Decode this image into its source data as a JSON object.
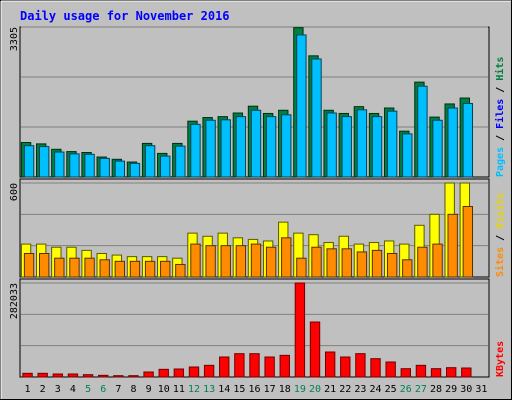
{
  "chart_data": {
    "type": "bar",
    "title": "Daily usage for November 2016",
    "categories": [
      "1",
      "2",
      "3",
      "4",
      "5",
      "6",
      "7",
      "8",
      "9",
      "10",
      "11",
      "12",
      "13",
      "14",
      "15",
      "16",
      "17",
      "18",
      "19",
      "20",
      "21",
      "22",
      "23",
      "24",
      "25",
      "26",
      "27",
      "28",
      "29",
      "30",
      "31"
    ],
    "weekend_days": [
      "5",
      "6",
      "12",
      "13",
      "19",
      "20",
      "26",
      "27"
    ],
    "grid": true,
    "panels": [
      {
        "id": "hits-files-pages",
        "ymax_label": "3305",
        "ylim": [
          0,
          3305
        ],
        "labels": {
          "hits": "Hits",
          "files": "Files",
          "pages": "Pages",
          "separator": " / "
        },
        "series": [
          {
            "name": "Hits",
            "color": "#008040",
            "values": [
              760,
              730,
              610,
              560,
              540,
              440,
              390,
              330,
              740,
              520,
              740,
              1230,
              1310,
              1330,
              1410,
              1560,
              1400,
              1470,
              3290,
              2670,
              1470,
              1400,
              1550,
              1400,
              1520,
              1010,
              2090,
              1320,
              1610,
              1740,
              0
            ]
          },
          {
            "name": "Files",
            "color": "#00bfff",
            "values": [
              690,
              670,
              550,
              510,
              500,
              410,
              350,
              300,
              690,
              460,
              680,
              1160,
              1250,
              1260,
              1330,
              1470,
              1330,
              1370,
              3130,
              2600,
              1410,
              1330,
              1480,
              1330,
              1450,
              950,
              2000,
              1250,
              1520,
              1620,
              0
            ]
          }
        ]
      },
      {
        "id": "visits-sites",
        "ymax_label": "600",
        "ylim": [
          0,
          600
        ],
        "labels": {
          "visits": "Visits",
          "sites": "Sites",
          "separator": " / "
        },
        "series": [
          {
            "name": "Visits",
            "color": "#ffff00",
            "values": [
              210,
              210,
              190,
              190,
              170,
              150,
              140,
              130,
              130,
              130,
              120,
              280,
              260,
              280,
              250,
              240,
              230,
              350,
              280,
              270,
              220,
              260,
              210,
              220,
              230,
              210,
              330,
              400,
              600,
              600,
              0
            ]
          },
          {
            "name": "Sites",
            "color": "#ff8c00",
            "values": [
              150,
              150,
              120,
              120,
              120,
              110,
              100,
              100,
              100,
              100,
              80,
              210,
              200,
              200,
              200,
              210,
              190,
              250,
              120,
              190,
              180,
              180,
              160,
              170,
              150,
              110,
              190,
              210,
              400,
              450,
              0
            ]
          }
        ]
      },
      {
        "id": "kbytes",
        "ymax_label": "282033",
        "ylim": [
          0,
          282033
        ],
        "labels": {
          "kbytes": "KBytes"
        },
        "series": [
          {
            "name": "KBytes",
            "color": "#ff0000",
            "values": [
              11000,
              11000,
              9000,
              9000,
              7000,
              5000,
              4000,
              4000,
              15000,
              23000,
              24000,
              30000,
              35000,
              60000,
              70000,
              70000,
              60000,
              65000,
              282033,
              165000,
              75000,
              60000,
              70000,
              55000,
              45000,
              25000,
              35000,
              25000,
              28000,
              27000,
              0
            ]
          }
        ]
      }
    ]
  },
  "colors": {
    "background": "#c0c0c0",
    "title": "#0000ff",
    "weekday_label": "#000000",
    "weekend_label": "#00805a",
    "pages": "#00bfff",
    "files": "#0000ff",
    "hits": "#008040",
    "visits": "#e6d600",
    "sites": "#ff8c00",
    "kbytes": "#ff0000"
  }
}
